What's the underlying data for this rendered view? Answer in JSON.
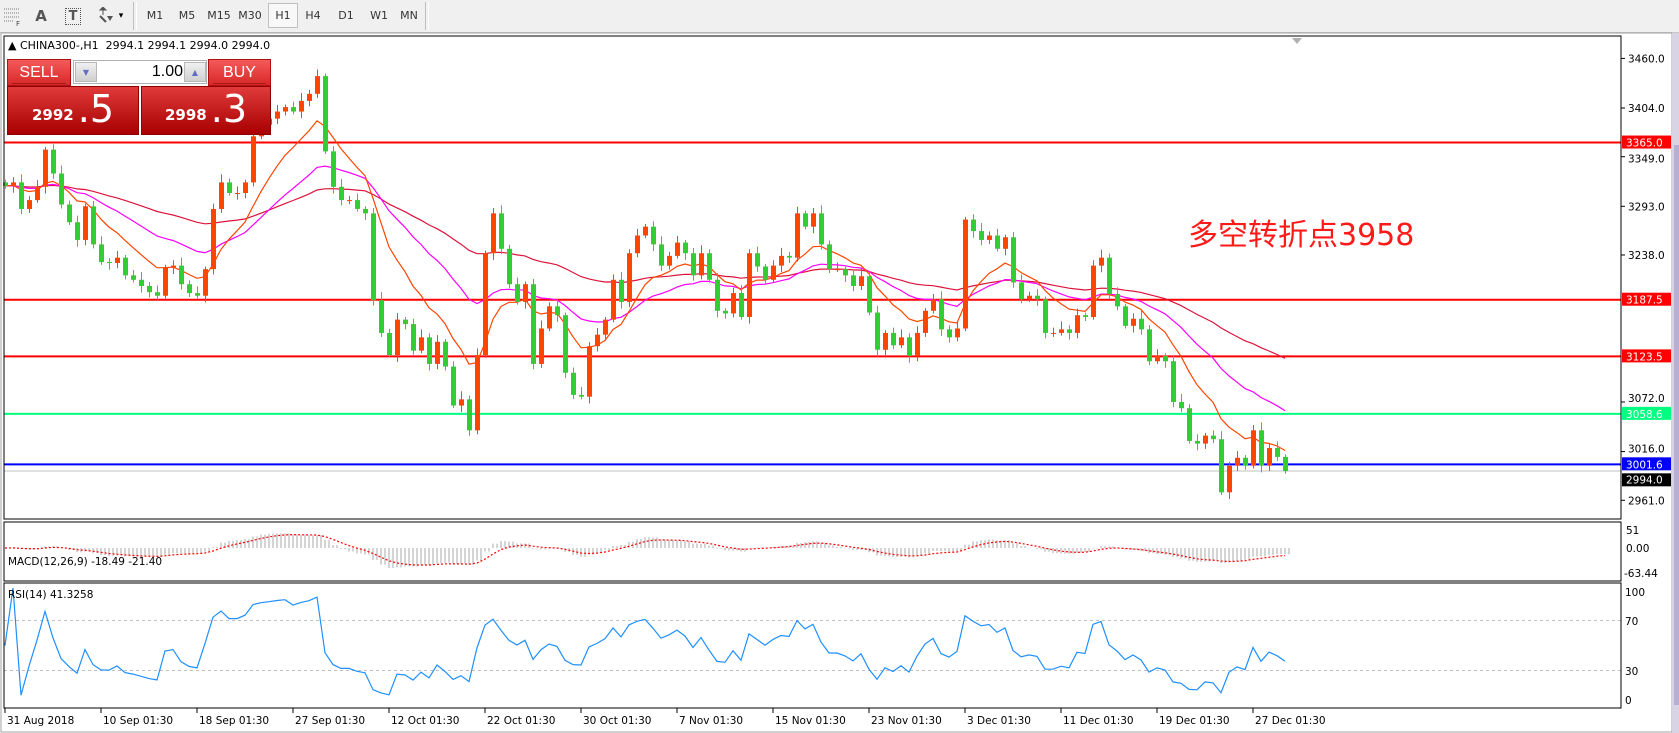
{
  "toolbar": {
    "tools": [
      {
        "name": "horizontal-lines-fibo-icon",
        "label": "F"
      },
      {
        "name": "text-tool-icon",
        "label": "A"
      },
      {
        "name": "text-label-tool-icon",
        "label": "T"
      },
      {
        "name": "arrows-tool-icon",
        "label": "▾"
      }
    ],
    "timeframes": [
      "M1",
      "M5",
      "M15",
      "M30",
      "H1",
      "H4",
      "D1",
      "W1",
      "MN"
    ],
    "active_timeframe": "H1"
  },
  "chart": {
    "symbol_line": "CHINA300-,H1  2994.1 2994.1 2994.0 2994.0",
    "trade_panel": {
      "sell_label": "SELL",
      "buy_label": "BUY",
      "lot": "1.00",
      "sell_price_main": "2992",
      "sell_price_frac": ".5",
      "buy_price_main": "2998",
      "buy_price_frac": ".3"
    },
    "annotation": "多空转折点3958",
    "price_axis": [
      "3460.0",
      "3404.0",
      "3349.0",
      "3293.0",
      "3238.0",
      "3072.0",
      "3016.0",
      "2961.0"
    ],
    "levels": [
      {
        "value": 3365.0,
        "label": "3365.0",
        "color": "#ff0000"
      },
      {
        "value": 3187.5,
        "label": "3187.5",
        "color": "#ff0000"
      },
      {
        "value": 3123.5,
        "label": "3123.5",
        "color": "#ff0000"
      },
      {
        "value": 3058.6,
        "label": "3058.6",
        "color": "#00ff7f"
      },
      {
        "value": 3001.6,
        "label": "3001.6",
        "color": "#0000ff"
      }
    ],
    "current_price": {
      "value": 2994.0,
      "label": "2994.0",
      "color": "#000000"
    }
  },
  "macd": {
    "label": "MACD(12,26,9) -18.49 -21.40",
    "axis": [
      "51",
      "0.00",
      "-63.44"
    ]
  },
  "rsi": {
    "label": "RSI(14) 41.3258",
    "axis": [
      "100",
      "70",
      "30",
      "0"
    ],
    "levels": [
      70,
      30
    ]
  },
  "time_axis": [
    "31 Aug 2018",
    "10 Sep 01:30",
    "18 Sep 01:30",
    "27 Sep 01:30",
    "12 Oct 01:30",
    "22 Oct 01:30",
    "30 Oct 01:30",
    "7 Nov 01:30",
    "15 Nov 01:30",
    "23 Nov 01:30",
    "3 Dec 01:30",
    "11 Dec 01:30",
    "19 Dec 01:30",
    "27 Dec 01:30"
  ],
  "chart_data": {
    "type": "candlestick",
    "symbol": "CHINA300-",
    "timeframe": "H1",
    "colors": {
      "bull": "#ff4500",
      "bear": "#32cd32",
      "ma_fast": "#ff4500",
      "ma_mid": "#ff00ff",
      "ma_slow": "#dc143c",
      "rsi": "#1e90ff",
      "macd_hist": "#a8a8a8",
      "macd_signal": "#ff0000"
    },
    "ylim": [
      2930,
      3485
    ],
    "close": [
      3316,
      3320,
      3290,
      3300,
      3315,
      3357,
      3330,
      3295,
      3275,
      3255,
      3293,
      3250,
      3230,
      3229,
      3235,
      3215,
      3210,
      3203,
      3196,
      3192,
      3224,
      3226,
      3205,
      3195,
      3192,
      3222,
      3290,
      3320,
      3308,
      3308,
      3320,
      3372,
      3385,
      3392,
      3400,
      3405,
      3400,
      3412,
      3420,
      3440,
      3355,
      3315,
      3300,
      3300,
      3290,
      3285,
      3187,
      3150,
      3125,
      3165,
      3160,
      3130,
      3145,
      3115,
      3140,
      3112,
      3068,
      3075,
      3040,
      3125,
      3240,
      3285,
      3245,
      3205,
      3185,
      3205,
      3115,
      3155,
      3180,
      3170,
      3105,
      3080,
      3078,
      3135,
      3148,
      3165,
      3210,
      3185,
      3240,
      3260,
      3270,
      3250,
      3226,
      3237,
      3252,
      3240,
      3215,
      3240,
      3210,
      3175,
      3172,
      3195,
      3168,
      3240,
      3225,
      3210,
      3226,
      3237,
      3235,
      3285,
      3270,
      3285,
      3250,
      3222,
      3222,
      3215,
      3203,
      3214,
      3173,
      3131,
      3150,
      3136,
      3145,
      3124,
      3150,
      3175,
      3188,
      3154,
      3145,
      3155,
      3278,
      3265,
      3255,
      3260,
      3245,
      3258,
      3207,
      3188,
      3192,
      3188,
      3150,
      3150,
      3154,
      3150,
      3170,
      3168,
      3226,
      3235,
      3194,
      3180,
      3158,
      3166,
      3154,
      3118,
      3124,
      3118,
      3072,
      3065,
      3028,
      3025,
      3034,
      3030,
      2970,
      3000,
      3009,
      3000,
      3040,
      3000,
      3020,
      3010,
      2994
    ]
  }
}
